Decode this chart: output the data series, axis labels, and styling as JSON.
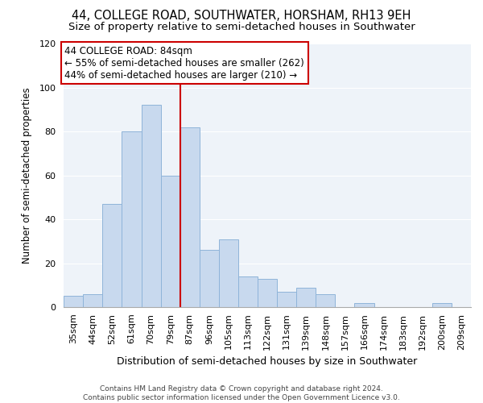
{
  "title1": "44, COLLEGE ROAD, SOUTHWATER, HORSHAM, RH13 9EH",
  "title2": "Size of property relative to semi-detached houses in Southwater",
  "xlabel": "Distribution of semi-detached houses by size in Southwater",
  "ylabel": "Number of semi-detached properties",
  "categories": [
    "35sqm",
    "44sqm",
    "52sqm",
    "61sqm",
    "70sqm",
    "79sqm",
    "87sqm",
    "96sqm",
    "105sqm",
    "113sqm",
    "122sqm",
    "131sqm",
    "139sqm",
    "148sqm",
    "157sqm",
    "166sqm",
    "174sqm",
    "183sqm",
    "192sqm",
    "200sqm",
    "209sqm"
  ],
  "values": [
    5,
    6,
    47,
    80,
    92,
    60,
    82,
    26,
    31,
    14,
    13,
    7,
    9,
    6,
    0,
    2,
    0,
    0,
    0,
    2,
    0
  ],
  "bar_color": "#c8d9ee",
  "bar_edge_color": "#8fb4d9",
  "vline_x_index": 6,
  "vline_color": "#cc0000",
  "annotation_line1": "44 COLLEGE ROAD: 84sqm",
  "annotation_line2": "← 55% of semi-detached houses are smaller (262)",
  "annotation_line3": "44% of semi-detached houses are larger (210) →",
  "annotation_box_color": "#cc0000",
  "ylim": [
    0,
    120
  ],
  "yticks": [
    0,
    20,
    40,
    60,
    80,
    100,
    120
  ],
  "bg_color": "#eef3f9",
  "grid_color": "#ffffff",
  "footer_text": "Contains HM Land Registry data © Crown copyright and database right 2024.\nContains public sector information licensed under the Open Government Licence v3.0.",
  "title1_fontsize": 10.5,
  "title2_fontsize": 9.5,
  "xlabel_fontsize": 9,
  "ylabel_fontsize": 8.5,
  "tick_fontsize": 8,
  "annotation_fontsize": 8.5,
  "footer_fontsize": 6.5
}
